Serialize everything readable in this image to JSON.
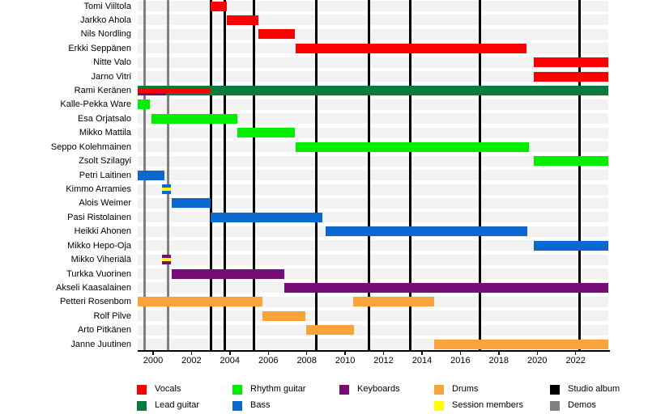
{
  "chart_data": {
    "type": "bar",
    "subtype": "band-member-gantt-timeline",
    "axis": {
      "min": 1999.2,
      "max": 2023.7,
      "ticks": [
        2000,
        2002,
        2004,
        2006,
        2008,
        2010,
        2012,
        2014,
        2016,
        2018,
        2020,
        2022
      ]
    },
    "colors": {
      "vocals": "#fa0000",
      "lead_guitar": "#0a7a3f",
      "rhythm_guitar": "#00ee00",
      "bass": "#0a68d0",
      "keyboards": "#760d76",
      "drums": "#f9a33c",
      "session": "#ffff00",
      "studio_album": "#000000",
      "demos": "#808080"
    },
    "members": [
      {
        "name": "Tomi Viiltola",
        "bars": [
          {
            "role": "vocals",
            "start": 2003.0,
            "end": 2003.85
          }
        ]
      },
      {
        "name": "Jarkko Ahola",
        "bars": [
          {
            "role": "vocals",
            "start": 2003.85,
            "end": 2005.5
          }
        ]
      },
      {
        "name": "Nils Nordling",
        "bars": [
          {
            "role": "vocals",
            "start": 2005.5,
            "end": 2007.4
          }
        ]
      },
      {
        "name": "Erkki Seppänen",
        "bars": [
          {
            "role": "vocals",
            "start": 2007.4,
            "end": 2019.45
          }
        ]
      },
      {
        "name": "Nitte Valo",
        "bars": [
          {
            "role": "vocals",
            "start": 2019.8,
            "end": 2023.7
          }
        ]
      },
      {
        "name": "Jarno Vitri",
        "bars": [
          {
            "role": "vocals",
            "start": 2019.8,
            "end": 2023.7
          }
        ]
      },
      {
        "name": "Rami Keränen",
        "bars": [
          {
            "role": "lead_guitar",
            "start": 1999.2,
            "end": 2023.7,
            "lane": "full"
          },
          {
            "role": "vocals",
            "start": 1999.2,
            "end": 2003.0,
            "lane": "mid"
          },
          {
            "role": "keyboards",
            "start": 1999.2,
            "end": 2000.65,
            "lane": "low"
          }
        ]
      },
      {
        "name": "Kalle-Pekka Ware",
        "bars": [
          {
            "role": "rhythm_guitar",
            "start": 1999.2,
            "end": 1999.85
          }
        ]
      },
      {
        "name": "Esa Orjatsalo",
        "bars": [
          {
            "role": "rhythm_guitar",
            "start": 1999.9,
            "end": 2004.4
          }
        ]
      },
      {
        "name": "Mikko Mattila",
        "bars": [
          {
            "role": "rhythm_guitar",
            "start": 2004.4,
            "end": 2007.4
          }
        ]
      },
      {
        "name": "Seppo Kolehmainen",
        "bars": [
          {
            "role": "rhythm_guitar",
            "start": 2007.4,
            "end": 2019.55
          }
        ]
      },
      {
        "name": "Zsolt Szilagyi",
        "bars": [
          {
            "role": "rhythm_guitar",
            "start": 2019.8,
            "end": 2023.7
          }
        ]
      },
      {
        "name": "Petri Laitinen",
        "bars": [
          {
            "role": "bass",
            "start": 1999.2,
            "end": 2000.6
          }
        ]
      },
      {
        "name": "Kimmo Arramies",
        "bars": [
          {
            "role": "bass",
            "start": 2000.45,
            "end": 2000.95,
            "session": true
          }
        ]
      },
      {
        "name": "Alois Weimer",
        "bars": [
          {
            "role": "bass",
            "start": 2000.95,
            "end": 2003.0
          }
        ]
      },
      {
        "name": "Pasi Ristolainen",
        "bars": [
          {
            "role": "bass",
            "start": 2003.0,
            "end": 2008.8
          }
        ]
      },
      {
        "name": "Heikki Ahonen",
        "bars": [
          {
            "role": "bass",
            "start": 2009.0,
            "end": 2019.5
          }
        ]
      },
      {
        "name": "Mikko Hepo-Oja",
        "bars": [
          {
            "role": "bass",
            "start": 2019.8,
            "end": 2023.7
          }
        ]
      },
      {
        "name": "Mikko Viheriälä",
        "bars": [
          {
            "role": "keyboards",
            "start": 2000.45,
            "end": 2000.95,
            "session": true
          }
        ]
      },
      {
        "name": "Turkka Vuorinen",
        "bars": [
          {
            "role": "keyboards",
            "start": 2000.95,
            "end": 2006.85
          }
        ]
      },
      {
        "name": "Akseli Kaasalainen",
        "bars": [
          {
            "role": "keyboards",
            "start": 2006.85,
            "end": 2023.7
          }
        ]
      },
      {
        "name": "Petteri Rosenbom",
        "bars": [
          {
            "role": "drums",
            "start": 1999.2,
            "end": 2005.7
          },
          {
            "role": "drums",
            "start": 2010.4,
            "end": 2014.65
          }
        ]
      },
      {
        "name": "Rolf Pilve",
        "bars": [
          {
            "role": "drums",
            "start": 2005.7,
            "end": 2007.95
          }
        ]
      },
      {
        "name": "Arto Pitkänen",
        "bars": [
          {
            "role": "drums",
            "start": 2007.95,
            "end": 2010.45
          }
        ]
      },
      {
        "name": "Janne Juutinen",
        "bars": [
          {
            "role": "drums",
            "start": 2014.65,
            "end": 2023.7
          }
        ]
      }
    ],
    "studio_album_lines": [
      2003.0,
      2003.73,
      2005.25,
      2008.5,
      2011.25,
      2013.38,
      2017.0,
      2022.2
    ],
    "demo_lines": [
      1999.55,
      2000.8
    ]
  },
  "legend": {
    "items": [
      {
        "label": "Vocals",
        "role": "vocals",
        "col": 0,
        "row": 0
      },
      {
        "label": "Lead guitar",
        "role": "lead_guitar",
        "col": 0,
        "row": 1
      },
      {
        "label": "Rhythm guitar",
        "role": "rhythm_guitar",
        "col": 1,
        "row": 0
      },
      {
        "label": "Bass",
        "role": "bass",
        "col": 1,
        "row": 1
      },
      {
        "label": "Keyboards",
        "role": "keyboards",
        "col": 2,
        "row": 0
      },
      {
        "label": "Drums",
        "role": "drums",
        "col": 3,
        "row": 0
      },
      {
        "label": "Session members",
        "role": "session",
        "col": 3,
        "row": 1
      },
      {
        "label": "Studio album",
        "role": "studio_album",
        "col": 4,
        "row": 0
      },
      {
        "label": "Demos",
        "role": "demos",
        "col": 4,
        "row": 1
      }
    ]
  }
}
